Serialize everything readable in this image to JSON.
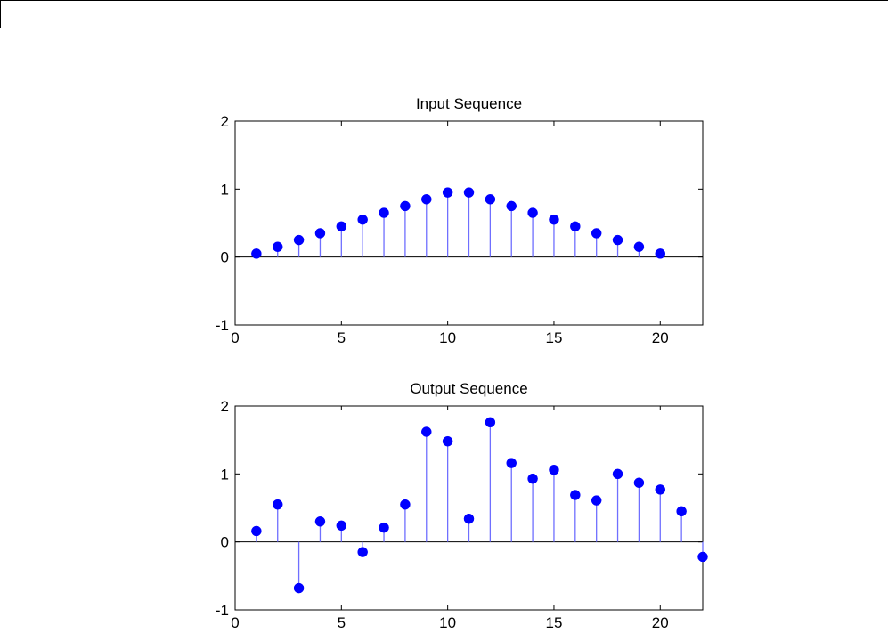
{
  "chart_data": [
    {
      "type": "stem",
      "title": "Input Sequence",
      "xlabel": "",
      "ylabel": "",
      "xlim": [
        0,
        22
      ],
      "ylim": [
        -1,
        2
      ],
      "xticks": [
        0,
        5,
        10,
        15,
        20
      ],
      "yticks": [
        -1,
        0,
        1,
        2
      ],
      "grid": false,
      "x": [
        1,
        2,
        3,
        4,
        5,
        6,
        7,
        8,
        9,
        10,
        11,
        12,
        13,
        14,
        15,
        16,
        17,
        18,
        19,
        20
      ],
      "values": [
        0.05,
        0.15,
        0.25,
        0.35,
        0.45,
        0.55,
        0.65,
        0.75,
        0.85,
        0.95,
        0.95,
        0.85,
        0.75,
        0.65,
        0.55,
        0.45,
        0.35,
        0.25,
        0.15,
        0.05
      ]
    },
    {
      "type": "stem",
      "title": "Output Sequence",
      "xlabel": "",
      "ylabel": "",
      "xlim": [
        0,
        22
      ],
      "ylim": [
        -1,
        2
      ],
      "xticks": [
        0,
        5,
        10,
        15,
        20
      ],
      "yticks": [
        -1,
        0,
        1,
        2
      ],
      "grid": false,
      "x": [
        1,
        2,
        3,
        4,
        5,
        6,
        7,
        8,
        9,
        10,
        11,
        12,
        13,
        14,
        15,
        16,
        17,
        18,
        19,
        20,
        21,
        22
      ],
      "values": [
        0.16,
        0.55,
        -0.68,
        0.3,
        0.24,
        -0.15,
        0.21,
        0.55,
        1.62,
        1.48,
        0.34,
        1.76,
        1.16,
        0.93,
        1.06,
        0.69,
        0.61,
        1.0,
        0.87,
        0.77,
        0.45,
        -0.22
      ]
    }
  ],
  "colors": {
    "marker": "#0000ff",
    "stem": "#6f6fff",
    "axes": "#000000",
    "baseline": "#000000"
  }
}
